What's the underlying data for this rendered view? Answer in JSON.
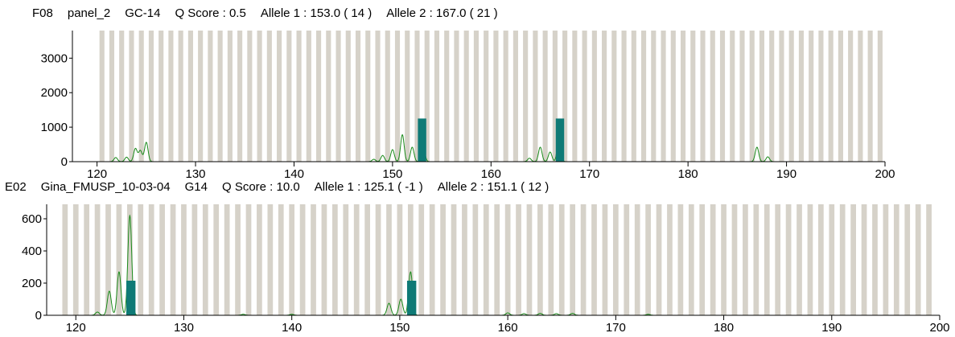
{
  "colors": {
    "bin": "#d6d2c9",
    "trace": "#1a8a1a",
    "allele_bar": "#0f7a76",
    "axis": "#000000"
  },
  "chart_data": [
    {
      "type": "line",
      "header": {
        "well": "F08",
        "sample": "panel_2",
        "marker": "GC-14",
        "q_score": "Q Score : 0.5",
        "allele1": "Allele 1 : 153.0 ( 14 )",
        "allele2": "Allele 2 : 167.0 ( 21 )"
      },
      "xlim": [
        117.5,
        200
      ],
      "ylim": [
        0,
        3800
      ],
      "xticks": [
        120,
        130,
        140,
        150,
        160,
        170,
        180,
        190,
        200
      ],
      "yticks": [
        0,
        1000,
        2000,
        3000
      ],
      "bins_start": 120.5,
      "bins_end": 199.5,
      "bins_step": 1,
      "alleles": [
        {
          "size": 153.0,
          "height": 1250
        },
        {
          "size": 167.0,
          "height": 1250
        }
      ],
      "peaks": [
        {
          "x": 121.9,
          "h": 120
        },
        {
          "x": 123.0,
          "h": 130
        },
        {
          "x": 123.9,
          "h": 380
        },
        {
          "x": 124.4,
          "h": 320
        },
        {
          "x": 125.0,
          "h": 560
        },
        {
          "x": 148.1,
          "h": 70
        },
        {
          "x": 149.0,
          "h": 180
        },
        {
          "x": 150.0,
          "h": 350
        },
        {
          "x": 151.0,
          "h": 780
        },
        {
          "x": 152.0,
          "h": 420
        },
        {
          "x": 153.1,
          "h": 480
        },
        {
          "x": 163.9,
          "h": 100
        },
        {
          "x": 165.0,
          "h": 420
        },
        {
          "x": 166.0,
          "h": 280
        },
        {
          "x": 166.9,
          "h": 700
        },
        {
          "x": 187.0,
          "h": 420
        },
        {
          "x": 188.1,
          "h": 140
        }
      ]
    },
    {
      "type": "line",
      "header": {
        "well": "E02",
        "sample": "Gina_FMUSP_10-03-04",
        "marker": "G14",
        "q_score": "Q Score : 10.0",
        "allele1": "Allele 1 : 125.1 ( -1 )",
        "allele2": "Allele 2 : 151.1 ( 12 )"
      },
      "xlim": [
        117.3,
        200
      ],
      "ylim": [
        0,
        690
      ],
      "xticks": [
        120,
        130,
        140,
        150,
        160,
        170,
        180,
        190,
        200
      ],
      "yticks": [
        0,
        200,
        400,
        600
      ],
      "bins_start": 119.0,
      "bins_end": 199.0,
      "bins_step": 1,
      "alleles": [
        {
          "size": 125.1,
          "height": 215
        },
        {
          "size": 151.1,
          "height": 215
        }
      ],
      "peaks": [
        {
          "x": 122.0,
          "h": 20
        },
        {
          "x": 123.1,
          "h": 150
        },
        {
          "x": 124.0,
          "h": 270
        },
        {
          "x": 125.0,
          "h": 620
        },
        {
          "x": 149.0,
          "h": 75
        },
        {
          "x": 150.1,
          "h": 100
        },
        {
          "x": 151.0,
          "h": 270
        },
        {
          "x": 160.0,
          "h": 15
        },
        {
          "x": 161.5,
          "h": 10
        },
        {
          "x": 163.0,
          "h": 12
        },
        {
          "x": 164.5,
          "h": 10
        },
        {
          "x": 166.0,
          "h": 12
        },
        {
          "x": 140.0,
          "h": 6
        },
        {
          "x": 135.5,
          "h": 6
        },
        {
          "x": 173.0,
          "h": 6
        }
      ]
    }
  ]
}
